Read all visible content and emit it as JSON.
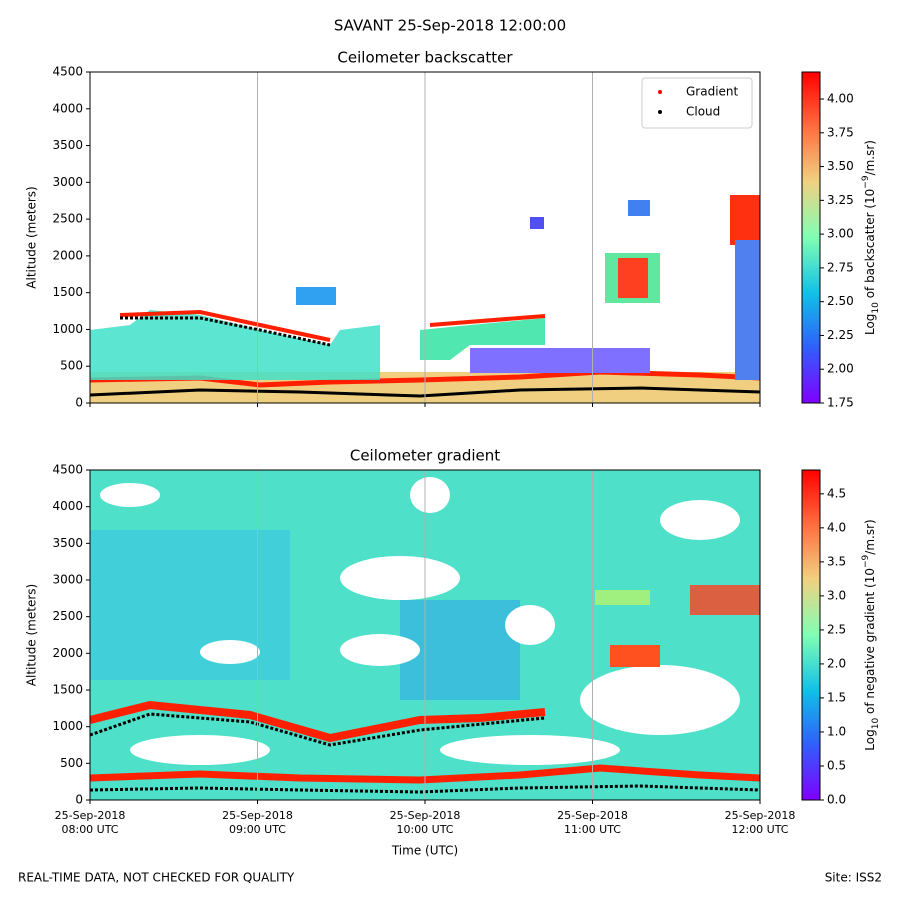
{
  "suptitle": "SAVANT 25-Sep-2018 12:00:00",
  "footer_left": "REAL-TIME DATA, NOT CHECKED FOR QUALITY",
  "footer_right": "Site: ISS2",
  "chart_data": [
    {
      "type": "heatmap",
      "title": "Ceilometer backscatter",
      "ylabel": "Altitude (meters)",
      "ylim": [
        0,
        4500
      ],
      "yticks": [
        0,
        500,
        1000,
        1500,
        2000,
        2500,
        3000,
        3500,
        4000,
        4500
      ],
      "grid": true,
      "legend": [
        {
          "name": "Gradient",
          "color": "#ff0000"
        },
        {
          "name": "Cloud",
          "color": "#000000"
        }
      ],
      "legend_position": "upper right",
      "colormap": "rainbow",
      "colorbar_label": [
        "Log",
        "10",
        " of backscatter (10",
        "−9",
        "/m.sr)"
      ],
      "clim": [
        1.75,
        4.2
      ],
      "cticks": [
        {
          "value": 1.75,
          "label": "1.75"
        },
        {
          "value": 2,
          "label": "2.00"
        },
        {
          "value": 2.25,
          "label": "2.25"
        },
        {
          "value": 2.5,
          "label": "2.50"
        },
        {
          "value": 2.75,
          "label": "2.75"
        },
        {
          "value": 3,
          "label": "3.00"
        },
        {
          "value": 3.25,
          "label": "3.25"
        },
        {
          "value": 3.5,
          "label": "3.50"
        },
        {
          "value": 3.75,
          "label": "3.75"
        },
        {
          "value": 4,
          "label": "4.00"
        }
      ]
    },
    {
      "type": "heatmap",
      "title": "Ceilometer gradient",
      "ylabel": "Altitude (meters)",
      "xlabel": "Time (UTC)",
      "ylim": [
        0,
        4500
      ],
      "yticks": [
        0,
        500,
        1000,
        1500,
        2000,
        2500,
        3000,
        3500,
        4000,
        4500
      ],
      "grid": true,
      "xticks": [
        {
          "date": "25-Sep-2018",
          "time": "08:00 UTC"
        },
        {
          "date": "25-Sep-2018",
          "time": "09:00 UTC"
        },
        {
          "date": "25-Sep-2018",
          "time": "10:00 UTC"
        },
        {
          "date": "25-Sep-2018",
          "time": "11:00 UTC"
        },
        {
          "date": "25-Sep-2018",
          "time": "12:00 UTC"
        }
      ],
      "colormap": "rainbow",
      "colorbar_label": [
        "Log",
        "10",
        " of negative gradient (10",
        "−9",
        "/m.sr)"
      ],
      "clim": [
        0,
        4.85
      ],
      "cticks": [
        {
          "value": 0,
          "label": "0.0"
        },
        {
          "value": 0.5,
          "label": "0.5"
        },
        {
          "value": 1,
          "label": "1.0"
        },
        {
          "value": 1.5,
          "label": "1.5"
        },
        {
          "value": 2,
          "label": "2.0"
        },
        {
          "value": 2.5,
          "label": "2.5"
        },
        {
          "value": 3,
          "label": "3.0"
        },
        {
          "value": 3.5,
          "label": "3.5"
        },
        {
          "value": 4,
          "label": "4.0"
        },
        {
          "value": 4.5,
          "label": "4.5"
        }
      ]
    }
  ]
}
